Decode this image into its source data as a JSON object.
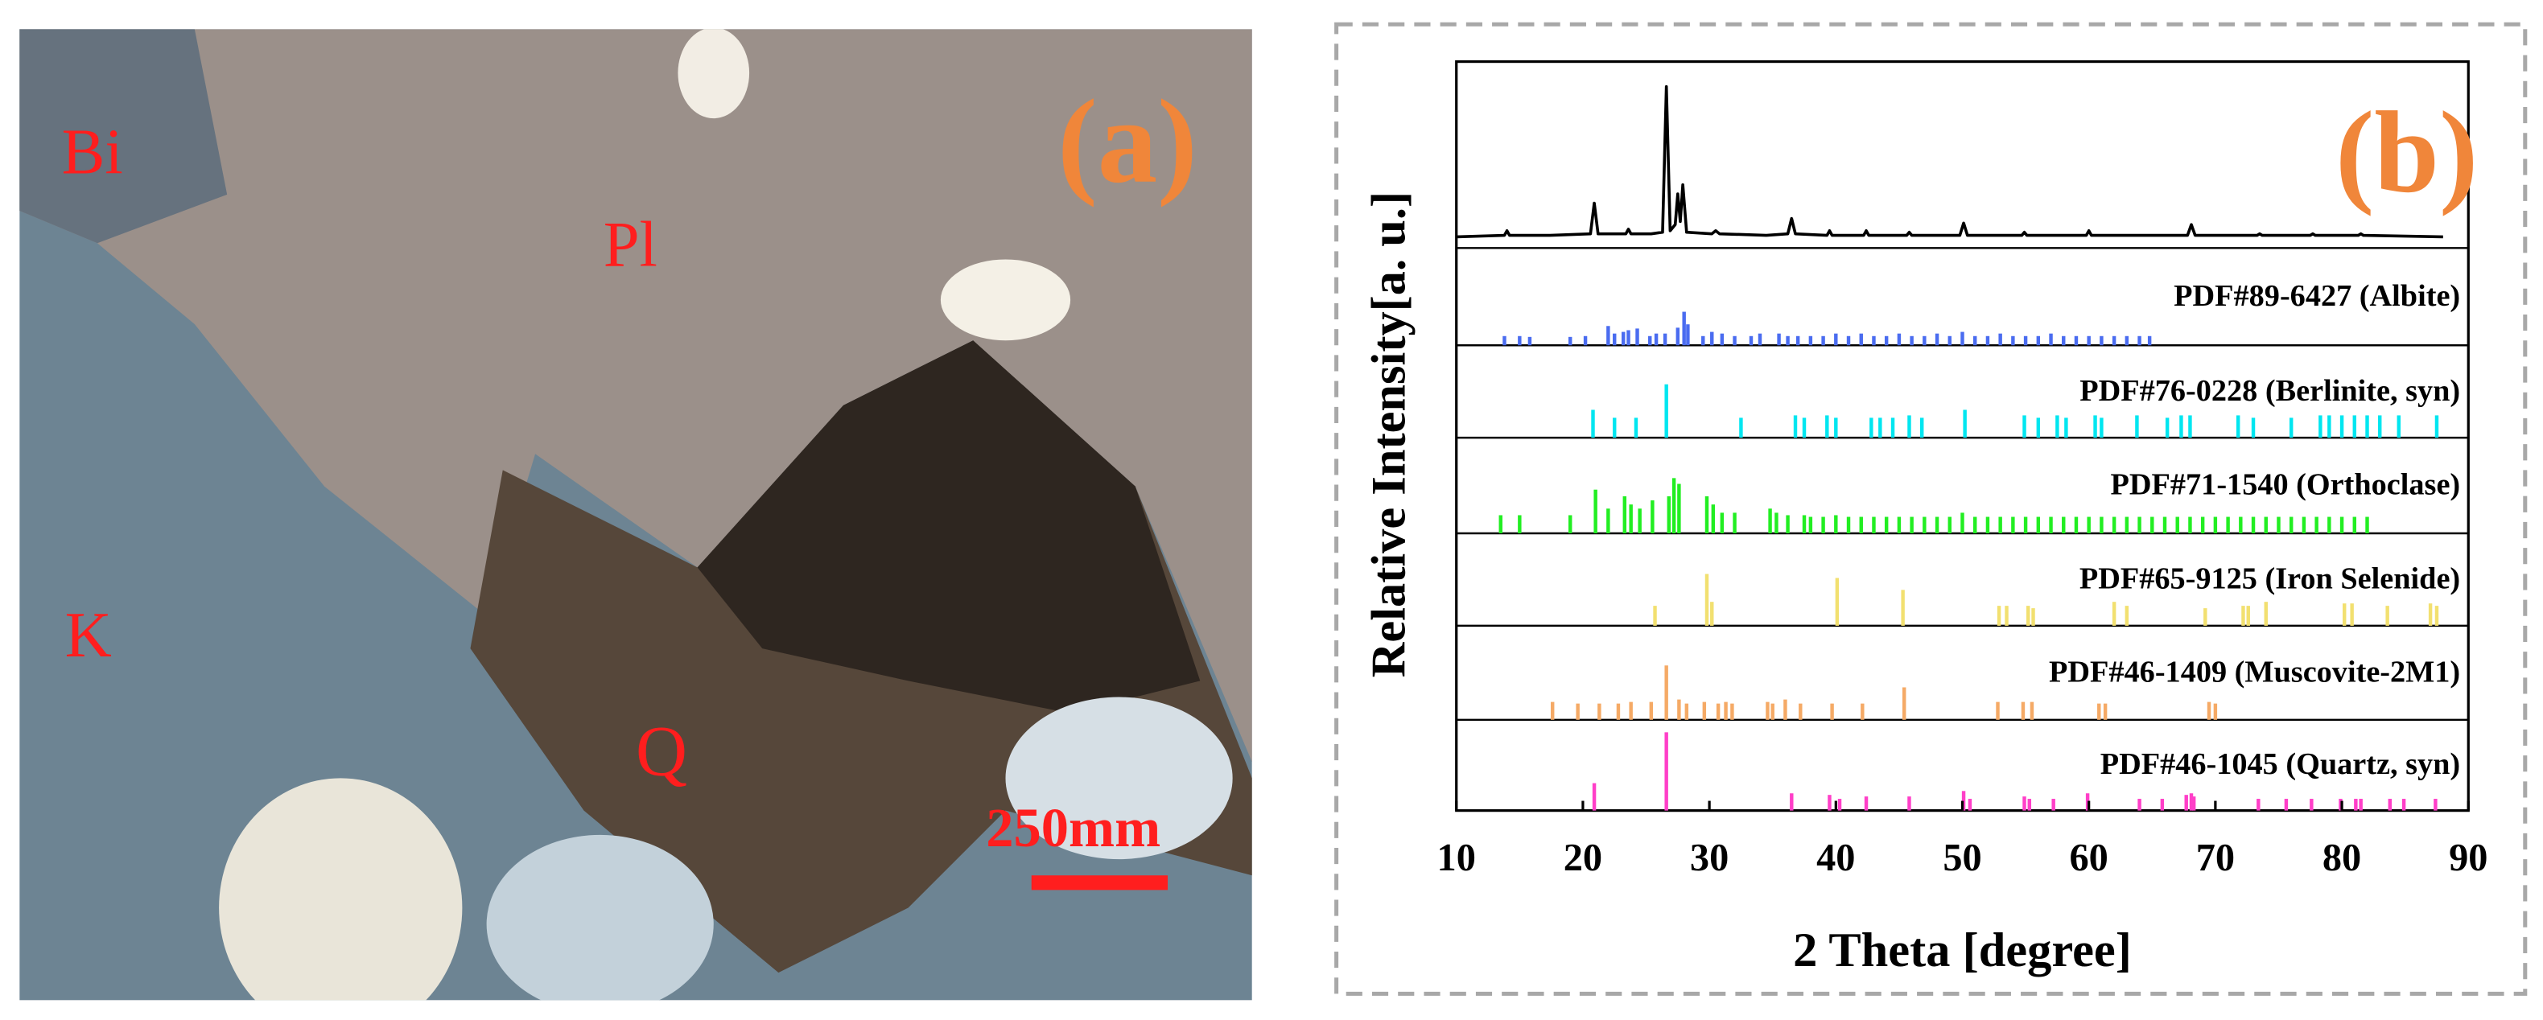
{
  "micrograph": {
    "panel_label": "(a)",
    "labels": [
      "Bi",
      "Pl",
      "K",
      "Q"
    ],
    "scale_bar": "250mm"
  },
  "chart_data": {
    "type": "xrd",
    "panel_label": "(b)",
    "x_label": "2 Theta [degree]",
    "y_label": "Relative Intensity[a. u.]",
    "xlim": [
      10,
      90
    ],
    "xticks": [
      10,
      20,
      30,
      40,
      50,
      60,
      70,
      80,
      90
    ],
    "series": [
      {
        "style": "line",
        "color": "#000000",
        "ylim": [
          0,
          110
        ],
        "x": [
          10,
          13.8,
          14.0,
          14.2,
          17.4,
          20.6,
          20.9,
          21.2,
          23.4,
          23.6,
          23.8,
          25.4,
          26.3,
          26.6,
          26.9,
          27.3,
          27.5,
          27.7,
          27.9,
          28.2,
          30.2,
          30.5,
          30.8,
          34.5,
          36.2,
          36.5,
          36.8,
          39.3,
          39.5,
          39.7,
          42.2,
          42.4,
          42.6,
          45.6,
          45.8,
          46.0,
          49.8,
          50.1,
          50.4,
          54.7,
          54.9,
          55.1,
          59.8,
          60.0,
          60.2,
          64.0,
          67.8,
          68.1,
          68.4,
          73.3,
          73.5,
          73.7,
          77.5,
          77.7,
          77.9,
          81.3,
          81.5,
          81.7,
          88.0
        ],
        "values": [
          2,
          3,
          6,
          3,
          3,
          4,
          24,
          4,
          4,
          7,
          4,
          4,
          5,
          100,
          6,
          10,
          30,
          12,
          36,
          5,
          4,
          6,
          4,
          3,
          4,
          14,
          4,
          3,
          6,
          3,
          3,
          6,
          3,
          3,
          5,
          3,
          3,
          11,
          3,
          3,
          5,
          3,
          3,
          6,
          3,
          3,
          3,
          10,
          3,
          3,
          4,
          3,
          3,
          4,
          3,
          3,
          4,
          3,
          2
        ]
      },
      {
        "style": "stick",
        "name": "PDF#89-6427 (Albite)",
        "color": "#4a6cf0",
        "ylim": [
          0,
          116
        ],
        "x": [
          13.8,
          15,
          15.8,
          19,
          20.2,
          22,
          22.5,
          23.2,
          23.6,
          24.3,
          25.3,
          25.8,
          26.5,
          27.5,
          28,
          28.3,
          29.5,
          30.2,
          31,
          32,
          33.3,
          34,
          35.5,
          36.2,
          37,
          38,
          39,
          40,
          41,
          42,
          43,
          44,
          45,
          46,
          47,
          48,
          49,
          50,
          51,
          52,
          53,
          54,
          55,
          56,
          57,
          58,
          59,
          60,
          61,
          62,
          63,
          64,
          64.8
        ],
        "values": [
          11,
          11,
          10,
          10,
          11,
          23,
          14,
          16,
          18,
          20,
          11,
          14,
          14,
          21,
          40,
          25,
          11,
          16,
          14,
          11,
          11,
          14,
          14,
          11,
          11,
          11,
          11,
          14,
          11,
          14,
          11,
          11,
          14,
          11,
          11,
          14,
          11,
          16,
          11,
          11,
          14,
          11,
          11,
          11,
          14,
          11,
          11,
          11,
          11,
          11,
          11,
          11,
          11
        ]
      },
      {
        "style": "stick",
        "name": "PDF#76-0228 (Berlinite, syn)",
        "color": "#00e6f0",
        "ylim": [
          0,
          116
        ],
        "x": [
          20.8,
          22.5,
          24.2,
          26.6,
          32.5,
          36.8,
          37.5,
          39.3,
          40,
          42.8,
          43.5,
          44.5,
          45.8,
          46.8,
          50.2,
          54.9,
          56,
          57.5,
          58.2,
          60.5,
          61,
          63.8,
          66.2,
          67.3,
          68,
          71.8,
          73,
          76,
          78.3,
          79,
          80,
          81,
          82,
          83,
          84.5,
          87.5
        ],
        "values": [
          35,
          25,
          25,
          67,
          25,
          28,
          25,
          28,
          25,
          25,
          25,
          25,
          28,
          25,
          35,
          28,
          25,
          28,
          25,
          28,
          25,
          28,
          25,
          28,
          28,
          28,
          25,
          25,
          28,
          28,
          28,
          28,
          28,
          28,
          28,
          28
        ]
      },
      {
        "style": "stick",
        "name": "PDF#71-1540 (Orthoclase)",
        "color": "#22ee22",
        "ylim": [
          0,
          116
        ],
        "x": [
          13.5,
          15,
          19,
          21,
          22,
          23.3,
          23.8,
          24.5,
          25.5,
          26.8,
          27.2,
          27.6,
          29.8,
          30.3,
          31,
          32,
          34.8,
          35.3,
          36.2,
          37.5,
          38,
          39,
          40,
          41,
          42,
          43,
          44,
          45,
          46,
          47,
          48,
          49,
          50,
          51,
          52,
          53,
          54,
          55,
          56,
          57,
          58,
          59,
          60,
          61,
          62,
          63,
          64,
          65,
          66,
          67,
          68,
          69,
          70,
          71,
          72,
          73,
          74,
          75,
          76,
          77,
          78,
          79,
          80,
          81,
          82
        ],
        "values": [
          22,
          22,
          22,
          53,
          30,
          45,
          35,
          30,
          40,
          45,
          67,
          60,
          45,
          35,
          25,
          25,
          30,
          25,
          22,
          22,
          20,
          20,
          22,
          20,
          20,
          20,
          20,
          20,
          20,
          20,
          20,
          20,
          25,
          20,
          20,
          20,
          20,
          20,
          20,
          20,
          20,
          20,
          20,
          20,
          20,
          20,
          20,
          20,
          20,
          20,
          20,
          20,
          20,
          20,
          20,
          20,
          20,
          20,
          20,
          20,
          20,
          20,
          20,
          20,
          20
        ]
      },
      {
        "style": "stick",
        "name": "PDF#65-9125 (Iron Selenide)",
        "color": "#f2e070",
        "ylim": [
          0,
          116
        ],
        "x": [
          25.7,
          29.8,
          30.2,
          40.1,
          45.3,
          52.9,
          53.5,
          55.2,
          55.6,
          62,
          63,
          69.2,
          72.2,
          72.6,
          74,
          80.2,
          80.8,
          83.6,
          87,
          87.5
        ],
        "values": [
          25,
          65,
          30,
          60,
          45,
          25,
          25,
          25,
          22,
          30,
          25,
          22,
          25,
          25,
          30,
          28,
          28,
          25,
          28,
          25
        ]
      },
      {
        "style": "stick",
        "name": "PDF#46-1409 (Muscovite-2M1)",
        "color": "#f5aa66",
        "ylim": [
          0,
          116
        ],
        "x": [
          17.6,
          19.6,
          21.3,
          22.8,
          23.8,
          25.4,
          26.6,
          27.6,
          28.2,
          29.6,
          30.7,
          31.3,
          31.8,
          34.6,
          35,
          36,
          37.2,
          39.7,
          42.1,
          45.4,
          52.8,
          54.8,
          55.5,
          60.8,
          61.3,
          69.5,
          70
        ],
        "values": [
          22,
          20,
          20,
          20,
          22,
          22,
          67,
          25,
          20,
          22,
          20,
          22,
          20,
          22,
          20,
          25,
          20,
          20,
          20,
          40,
          22,
          22,
          22,
          20,
          20,
          22,
          20
        ]
      },
      {
        "style": "stick",
        "name": "PDF#46-1045 (Quartz, syn)",
        "color": "#ff3fc8",
        "ylim": [
          0,
          116
        ],
        "x": [
          20.9,
          26.6,
          36.5,
          39.5,
          40.3,
          42.4,
          45.8,
          50.1,
          50.6,
          54.9,
          55.3,
          57.2,
          59.9,
          64,
          65.8,
          67.7,
          68.1,
          68.3,
          73.4,
          75.6,
          77.6,
          79.9,
          81.1,
          81.5,
          83.8,
          84.9,
          87.4
        ],
        "values": [
          35,
          100,
          22,
          20,
          15,
          18,
          18,
          25,
          15,
          18,
          15,
          15,
          22,
          15,
          15,
          20,
          22,
          18,
          15,
          15,
          15,
          15,
          15,
          15,
          15,
          15,
          15
        ]
      }
    ]
  }
}
